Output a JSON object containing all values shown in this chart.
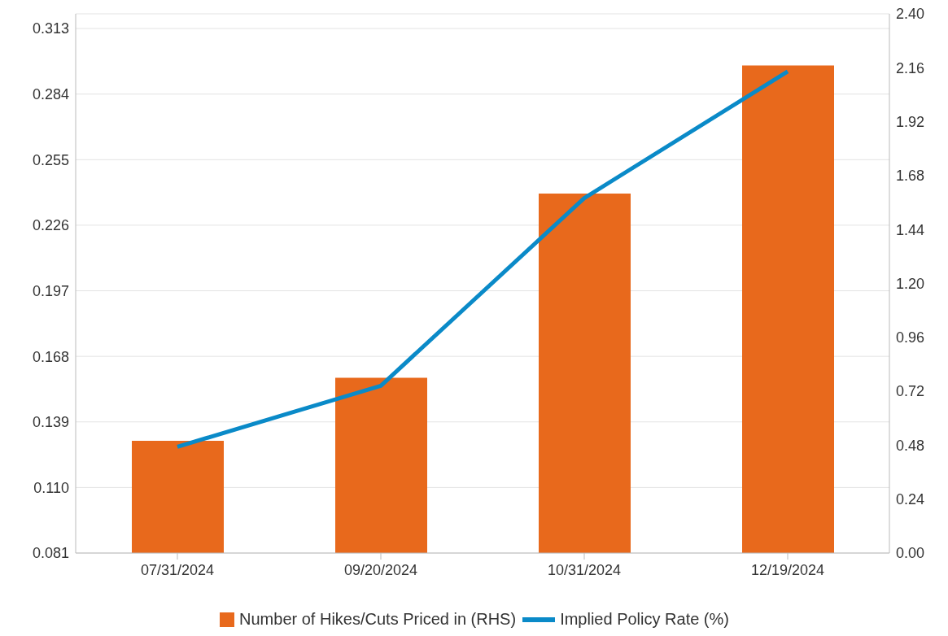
{
  "chart_data": {
    "type": "bar",
    "categories": [
      "07/31/2024",
      "09/20/2024",
      "10/31/2024",
      "12/19/2024"
    ],
    "series": [
      {
        "axis": "y2",
        "name": "Number of Hikes/Cuts Priced in (RHS)",
        "color": "#e8691c",
        "values": [
          0.5,
          0.78,
          1.6,
          2.17
        ]
      },
      {
        "type": "line",
        "name": "Implied Policy Rate (%)",
        "color": "#0a8ac8",
        "values": [
          0.128,
          0.155,
          0.238,
          0.294
        ]
      }
    ],
    "ylim": [
      0.081,
      0.3195
    ],
    "yticks": [
      0.081,
      {
        "value": 0.11,
        "label": "0.110"
      },
      0.139,
      0.168,
      0.197,
      0.226,
      0.255,
      0.284,
      0.313
    ],
    "y2lim": [
      0,
      2.4
    ],
    "y2ticks": [
      {
        "value": 0,
        "label": "0.00"
      },
      0.24,
      0.48,
      0.72,
      0.96,
      {
        "value": 1.2,
        "label": "1.20"
      },
      1.44,
      1.68,
      1.92,
      2.16,
      {
        "value": 2.4,
        "label": "2.40"
      }
    ],
    "grid": "y",
    "legend": "bottom",
    "marker": "none",
    "line_style": "solid"
  }
}
